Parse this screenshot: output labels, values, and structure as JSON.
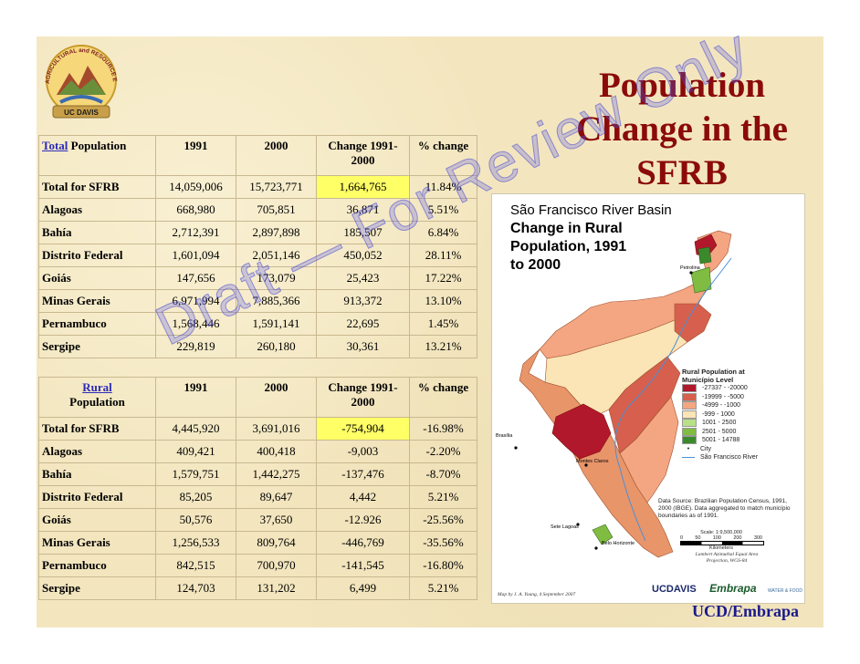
{
  "title": "Population Change in the SFRB",
  "table_total": {
    "header_word1": "Total",
    "header_word2": "Population",
    "columns": [
      "1991",
      "2000",
      "Change 1991-2000",
      "% change"
    ],
    "rows": [
      {
        "label": "Total for SFRB",
        "v1991": "14,059,006",
        "v2000": "15,723,771",
        "change": "1,664,765",
        "pct": "11.84%"
      },
      {
        "label": "Alagoas",
        "v1991": "668,980",
        "v2000": "705,851",
        "change": "36,871",
        "pct": "5.51%"
      },
      {
        "label": "Bahía",
        "v1991": "2,712,391",
        "v2000": "2,897,898",
        "change": "185,507",
        "pct": "6.84%"
      },
      {
        "label": "Distrito Federal",
        "v1991": "1,601,094",
        "v2000": "2,051,146",
        "change": "450,052",
        "pct": "28.11%"
      },
      {
        "label": "Goiás",
        "v1991": "147,656",
        "v2000": "173,079",
        "change": "25,423",
        "pct": "17.22%"
      },
      {
        "label": "Minas Gerais",
        "v1991": "6,971,994",
        "v2000": "7,885,366",
        "change": "913,372",
        "pct": "13.10%"
      },
      {
        "label": "Pernambuco",
        "v1991": "1,568,446",
        "v2000": "1,591,141",
        "change": "22,695",
        "pct": "1.45%"
      },
      {
        "label": "Sergipe",
        "v1991": "229,819",
        "v2000": "260,180",
        "change": "30,361",
        "pct": "13.21%"
      }
    ]
  },
  "table_rural": {
    "header_word1": "Rural",
    "header_word2": "Population",
    "columns": [
      "1991",
      "2000",
      "Change 1991-2000",
      "% change"
    ],
    "rows": [
      {
        "label": "Total for SFRB",
        "v1991": "4,445,920",
        "v2000": "3,691,016",
        "change": "-754,904",
        "pct": "-16.98%"
      },
      {
        "label": "Alagoas",
        "v1991": "409,421",
        "v2000": "400,418",
        "change": "-9,003",
        "pct": "-2.20%"
      },
      {
        "label": "Bahía",
        "v1991": "1,579,751",
        "v2000": "1,442,275",
        "change": "-137,476",
        "pct": "-8.70%"
      },
      {
        "label": "Distrito Federal",
        "v1991": "85,205",
        "v2000": "89,647",
        "change": "4,442",
        "pct": "5.21%"
      },
      {
        "label": "Goiás",
        "v1991": "50,576",
        "v2000": "37,650",
        "change": "-12.926",
        "pct": "-25.56%"
      },
      {
        "label": "Minas Gerais",
        "v1991": "1,256,533",
        "v2000": "809,764",
        "change": "-446,769",
        "pct": "-35.56%"
      },
      {
        "label": "Pernambuco",
        "v1991": "842,515",
        "v2000": "700,970",
        "change": "-141,545",
        "pct": "-16.80%"
      },
      {
        "label": "Sergipe",
        "v1991": "124,703",
        "v2000": "131,202",
        "change": "6,499",
        "pct": "5.21%"
      }
    ]
  },
  "watermark": "Draft — For Review Only",
  "map": {
    "title_line1": "São Francisco River Basin",
    "title_line2": "Change in Rural",
    "title_line3": "Population, 1991",
    "title_line4": "to 2000",
    "legend_title": "Rural Population at Município Level",
    "legend": [
      {
        "label": "-27337 - -20000",
        "color": "#b2182b"
      },
      {
        "label": "-19999 - -5000",
        "color": "#d6604d"
      },
      {
        "label": "-4999 - -1000",
        "color": "#f4a582"
      },
      {
        "label": "-999 - 1000",
        "color": "#fbe4b5"
      },
      {
        "label": "1001 - 2500",
        "color": "#b8e186"
      },
      {
        "label": "2501 - 5000",
        "color": "#7fbc41"
      },
      {
        "label": "5001 - 14788",
        "color": "#3a8a2c"
      }
    ],
    "legend_city": "City",
    "legend_river": "São Francisco River",
    "source": "Data Source: Brazilian Population Census, 1991, 2000 (IBGE). Data aggregated to match município boundaries as of 1991.",
    "scale_label": "Scale: 1:9,500,000",
    "scale_ticks": [
      "0",
      "50",
      "100",
      "200",
      "300"
    ],
    "scale_unit": "Kilometers",
    "projection": "Lambert Azimuthal Equal Area Projection, WGS-84",
    "map_by": "Map by J. A. Young, 4 September 2007",
    "cities": [
      "Brasília",
      "Montes Claros",
      "Sete Lagoas",
      "Belo Horizonte",
      "Petrolina"
    ]
  },
  "logo_text": "AGRICULTURAL and RESOURCE ECONOMICS",
  "logo_ucdavis": "UC DAVIS",
  "footer_ucdavis": "UCDAVIS",
  "footer_embrapa": "Embrapa",
  "footer_wf": "WATER & FOOD",
  "credit": "UCD/Embrapa"
}
